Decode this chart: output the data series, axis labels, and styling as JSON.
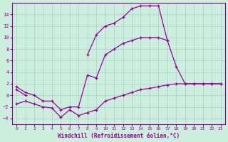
{
  "x": [
    0,
    1,
    2,
    3,
    4,
    5,
    6,
    7,
    8,
    9,
    10,
    11,
    12,
    13,
    14,
    15,
    16,
    17,
    18,
    19,
    20,
    21,
    22,
    23
  ],
  "line_top": [
    1,
    0,
    null,
    null,
    null,
    null,
    null,
    null,
    7,
    10.5,
    12,
    12.5,
    13.5,
    15,
    15.5,
    15.5,
    15.5,
    9.5,
    null,
    null,
    null,
    null,
    null,
    null
  ],
  "line_mid": [
    1.5,
    0.5,
    0,
    -1,
    -1,
    -2.5,
    -2,
    -2,
    3.5,
    3,
    7,
    8,
    9,
    9.5,
    10,
    10,
    10,
    9.5,
    5,
    2,
    2,
    2,
    2,
    2
  ],
  "line_bot": [
    -1.5,
    -1,
    -1.5,
    -2,
    -2.2,
    -3.8,
    -2.5,
    -3.5,
    -3,
    -2.5,
    -1,
    -0.5,
    0,
    0.5,
    1,
    1.2,
    1.5,
    1.8,
    2,
    2,
    2,
    2,
    2,
    2
  ],
  "color": "#990099",
  "bg_color": "#cceedd",
  "grid_color": "#aacccc",
  "xlabel": "Windchill (Refroidissement éolien,°C)",
  "ylim": [
    -5,
    16
  ],
  "xlim": [
    -0.5,
    23.5
  ],
  "yticks": [
    -4,
    -2,
    0,
    2,
    4,
    6,
    8,
    10,
    12,
    14
  ],
  "xticks": [
    0,
    1,
    2,
    3,
    4,
    5,
    6,
    7,
    8,
    9,
    10,
    11,
    12,
    13,
    14,
    15,
    16,
    17,
    18,
    19,
    20,
    21,
    22,
    23
  ]
}
